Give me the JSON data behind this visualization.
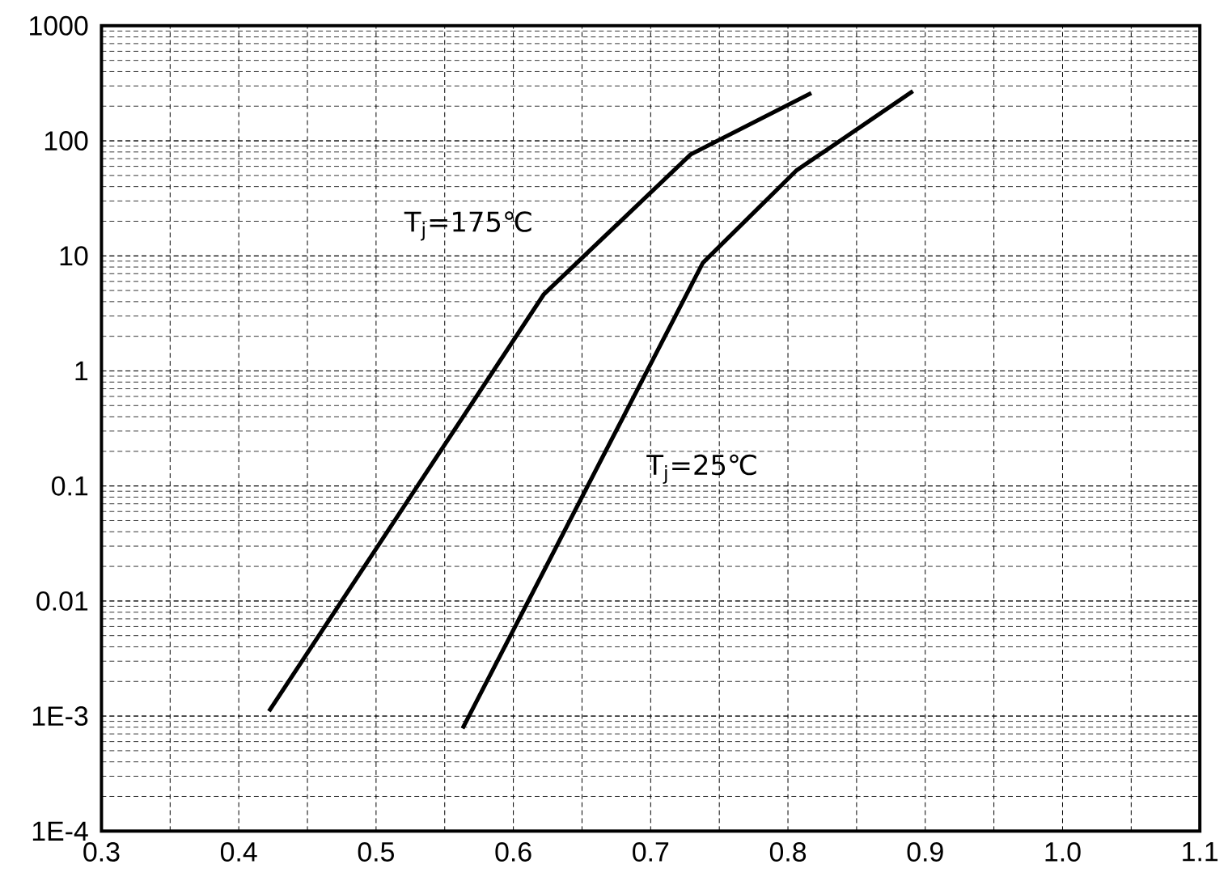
{
  "chart_data": {
    "type": "line",
    "log": "y",
    "grid": true,
    "xlim": [
      0.3,
      1.1
    ],
    "ylim": [
      0.0001,
      1000
    ],
    "xticks": [
      0.3,
      {
        "value": 0.35,
        "label": null
      },
      0.4,
      {
        "value": 0.45,
        "label": null
      },
      0.5,
      {
        "value": 0.55,
        "label": null
      },
      0.6,
      {
        "value": 0.65,
        "label": null
      },
      0.7,
      {
        "value": 0.75,
        "label": null
      },
      0.8,
      {
        "value": 0.85,
        "label": null
      },
      0.9,
      {
        "value": 0.95,
        "label": null
      },
      {
        "value": 1.0,
        "label": "1.0"
      },
      {
        "value": 1.05,
        "label": null
      },
      1.1
    ],
    "yticks": [
      {
        "value": 0.0001,
        "label": "1E-4"
      },
      {
        "value": 0.001,
        "label": "1E-3"
      },
      0.01,
      0.1,
      1,
      10,
      100,
      1000
    ],
    "series": [
      {
        "name": "T$_{j}$=175℃",
        "color": "#000000",
        "x": [
          0.422,
          0.622,
          0.729,
          0.817
        ],
        "values": [
          0.0011,
          4.6,
          76,
          260
        ]
      },
      {
        "name": "T$_{j}$=25℃",
        "color": "#000000",
        "x": [
          0.563,
          0.738,
          0.806,
          0.891
        ],
        "values": [
          0.00078,
          8.7,
          55,
          270
        ]
      }
    ]
  }
}
